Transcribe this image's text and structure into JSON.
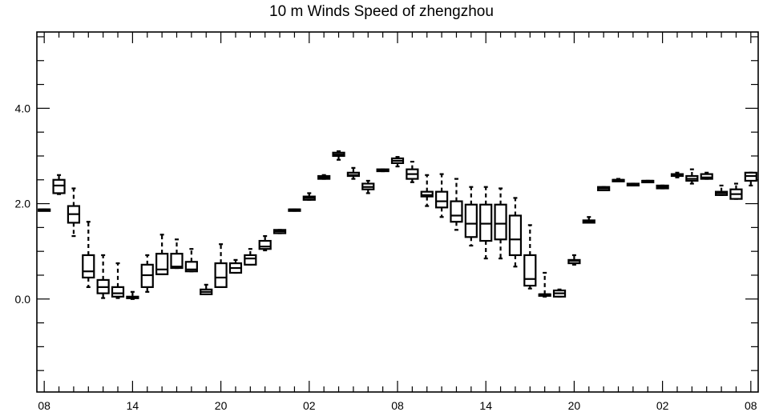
{
  "chart_data": {
    "type": "box",
    "title": "10 m Winds Speed of zhengzhou",
    "xlabel": "",
    "ylabel": "",
    "ylim": [
      -1.95,
      5.6
    ],
    "y_ticks": [
      0.0,
      2.0,
      4.0
    ],
    "y_tick_labels": [
      "0.0",
      "2.0",
      "4.0"
    ],
    "x_ticks": [
      0,
      6,
      12,
      18,
      24,
      30,
      36,
      42,
      48
    ],
    "x_tick_labels": [
      "08",
      "14",
      "20",
      "02",
      "08",
      "14",
      "20",
      "02",
      "08"
    ],
    "xlim": [
      -0.5,
      48.5
    ],
    "grid": false,
    "series": [
      {
        "boxes": [
          {
            "x": 0,
            "min": 1.88,
            "q1": 1.88,
            "median": 1.88,
            "q3": 1.88,
            "max": 1.88
          },
          {
            "x": 1,
            "min": 2.2,
            "q1": 2.22,
            "median": 2.38,
            "q3": 2.5,
            "max": 2.6
          },
          {
            "x": 2,
            "min": 1.32,
            "q1": 1.6,
            "median": 1.78,
            "q3": 1.95,
            "max": 2.32
          },
          {
            "x": 3,
            "min": 0.25,
            "q1": 0.45,
            "median": 0.58,
            "q3": 0.92,
            "max": 1.62
          },
          {
            "x": 4,
            "min": 0.02,
            "q1": 0.12,
            "median": 0.25,
            "q3": 0.4,
            "max": 0.92
          },
          {
            "x": 5,
            "min": 0.02,
            "q1": 0.05,
            "median": 0.12,
            "q3": 0.25,
            "max": 0.75
          },
          {
            "x": 6,
            "min": 0.0,
            "q1": 0.02,
            "median": 0.03,
            "q3": 0.05,
            "max": 0.15
          },
          {
            "x": 7,
            "min": 0.15,
            "q1": 0.25,
            "median": 0.5,
            "q3": 0.72,
            "max": 0.92
          },
          {
            "x": 8,
            "min": 0.52,
            "q1": 0.52,
            "median": 0.62,
            "q3": 0.95,
            "max": 1.35
          },
          {
            "x": 9,
            "min": 0.65,
            "q1": 0.65,
            "median": 0.68,
            "q3": 0.95,
            "max": 1.25
          },
          {
            "x": 10,
            "min": 0.58,
            "q1": 0.58,
            "median": 0.62,
            "q3": 0.78,
            "max": 1.05
          },
          {
            "x": 11,
            "min": 0.1,
            "q1": 0.1,
            "median": 0.15,
            "q3": 0.2,
            "max": 0.3
          },
          {
            "x": 12,
            "min": 0.25,
            "q1": 0.25,
            "median": 0.45,
            "q3": 0.75,
            "max": 1.15
          },
          {
            "x": 13,
            "min": 0.55,
            "q1": 0.55,
            "median": 0.65,
            "q3": 0.75,
            "max": 0.82
          },
          {
            "x": 14,
            "min": 0.72,
            "q1": 0.72,
            "median": 0.85,
            "q3": 0.92,
            "max": 1.05
          },
          {
            "x": 15,
            "min": 1.02,
            "q1": 1.05,
            "median": 1.1,
            "q3": 1.22,
            "max": 1.32
          },
          {
            "x": 16,
            "min": 1.38,
            "q1": 1.38,
            "median": 1.42,
            "q3": 1.45,
            "max": 1.45
          },
          {
            "x": 17,
            "min": 1.85,
            "q1": 1.85,
            "median": 1.88,
            "q3": 1.88,
            "max": 1.88
          },
          {
            "x": 18,
            "min": 2.08,
            "q1": 2.08,
            "median": 2.12,
            "q3": 2.15,
            "max": 2.22
          },
          {
            "x": 19,
            "min": 2.52,
            "q1": 2.52,
            "median": 2.55,
            "q3": 2.58,
            "max": 2.6
          },
          {
            "x": 20,
            "min": 2.92,
            "q1": 3.0,
            "median": 3.03,
            "q3": 3.07,
            "max": 3.1
          },
          {
            "x": 21,
            "min": 2.52,
            "q1": 2.58,
            "median": 2.6,
            "q3": 2.65,
            "max": 2.75
          },
          {
            "x": 22,
            "min": 2.22,
            "q1": 2.3,
            "median": 2.35,
            "q3": 2.42,
            "max": 2.48
          },
          {
            "x": 23,
            "min": 2.68,
            "q1": 2.68,
            "median": 2.7,
            "q3": 2.72,
            "max": 2.72
          },
          {
            "x": 24,
            "min": 2.78,
            "q1": 2.85,
            "median": 2.9,
            "q3": 2.95,
            "max": 2.98
          },
          {
            "x": 25,
            "min": 2.45,
            "q1": 2.52,
            "median": 2.62,
            "q3": 2.72,
            "max": 2.88
          },
          {
            "x": 26,
            "min": 1.95,
            "q1": 2.15,
            "median": 2.18,
            "q3": 2.25,
            "max": 2.6
          },
          {
            "x": 27,
            "min": 1.72,
            "q1": 1.92,
            "median": 2.05,
            "q3": 2.25,
            "max": 2.62
          },
          {
            "x": 28,
            "min": 1.45,
            "q1": 1.62,
            "median": 1.75,
            "q3": 2.05,
            "max": 2.52
          },
          {
            "x": 29,
            "min": 1.12,
            "q1": 1.3,
            "median": 1.58,
            "q3": 1.98,
            "max": 2.35
          },
          {
            "x": 30,
            "min": 0.85,
            "q1": 1.22,
            "median": 1.58,
            "q3": 1.98,
            "max": 2.35
          },
          {
            "x": 31,
            "min": 0.85,
            "q1": 1.25,
            "median": 1.58,
            "q3": 1.98,
            "max": 2.32
          },
          {
            "x": 32,
            "min": 0.68,
            "q1": 0.92,
            "median": 1.25,
            "q3": 1.75,
            "max": 2.12
          },
          {
            "x": 33,
            "min": 0.22,
            "q1": 0.28,
            "median": 0.42,
            "q3": 0.92,
            "max": 1.55
          },
          {
            "x": 34,
            "min": 0.05,
            "q1": 0.08,
            "median": 0.1,
            "q3": 0.1,
            "max": 0.55
          },
          {
            "x": 35,
            "min": 0.05,
            "q1": 0.05,
            "median": 0.12,
            "q3": 0.18,
            "max": 0.2
          },
          {
            "x": 36,
            "min": 0.72,
            "q1": 0.75,
            "median": 0.8,
            "q3": 0.82,
            "max": 0.92
          },
          {
            "x": 37,
            "min": 1.6,
            "q1": 1.6,
            "median": 1.62,
            "q3": 1.65,
            "max": 1.72
          },
          {
            "x": 38,
            "min": 2.28,
            "q1": 2.28,
            "median": 2.32,
            "q3": 2.35,
            "max": 2.35
          },
          {
            "x": 39,
            "min": 2.48,
            "q1": 2.48,
            "median": 2.5,
            "q3": 2.5,
            "max": 2.52
          },
          {
            "x": 40,
            "min": 2.38,
            "q1": 2.38,
            "median": 2.4,
            "q3": 2.42,
            "max": 2.42
          },
          {
            "x": 41,
            "min": 2.45,
            "q1": 2.45,
            "median": 2.48,
            "q3": 2.48,
            "max": 2.48
          },
          {
            "x": 42,
            "min": 2.32,
            "q1": 2.32,
            "median": 2.35,
            "q3": 2.38,
            "max": 2.38
          },
          {
            "x": 43,
            "min": 2.55,
            "q1": 2.58,
            "median": 2.6,
            "q3": 2.62,
            "max": 2.65
          },
          {
            "x": 44,
            "min": 2.42,
            "q1": 2.48,
            "median": 2.52,
            "q3": 2.58,
            "max": 2.72
          },
          {
            "x": 45,
            "min": 2.52,
            "q1": 2.52,
            "median": 2.55,
            "q3": 2.62,
            "max": 2.65
          },
          {
            "x": 46,
            "min": 2.18,
            "q1": 2.18,
            "median": 2.22,
            "q3": 2.25,
            "max": 2.38
          },
          {
            "x": 47,
            "min": 2.1,
            "q1": 2.1,
            "median": 2.2,
            "q3": 2.3,
            "max": 2.42
          },
          {
            "x": 48,
            "min": 2.38,
            "q1": 2.48,
            "median": 2.58,
            "q3": 2.65,
            "max": 2.65
          }
        ]
      }
    ]
  }
}
